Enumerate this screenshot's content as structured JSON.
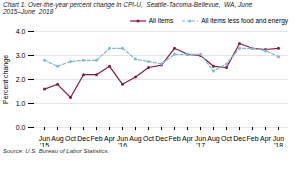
{
  "chart_data": {
    "type": "line",
    "title": "Chart 1. Over-the-year percent change in CPI-U,  Seattle-Tacoma-Bellevue,  WA, June\n2015–June  2018",
    "ylabel": "Percent change",
    "caption": "Source: U.S. Bureau of Labor Statistics.",
    "categories": [
      "Jun\n'15",
      "Aug",
      "Oct",
      "Dec",
      "Feb",
      "Apr",
      "Jun\n'16",
      "Aug",
      "Oct",
      "Dec",
      "Feb",
      "Apr",
      "Jun\n'17",
      "Aug",
      "Oct",
      "Dec",
      "Feb",
      "Apr",
      "Jun\n'18"
    ],
    "series": [
      {
        "name": "All items",
        "color": "#8b1a3e",
        "marker": "o",
        "line_style": "solid",
        "values": [
          1.6,
          1.8,
          1.25,
          2.2,
          2.2,
          2.55,
          1.8,
          2.1,
          2.5,
          2.6,
          3.3,
          3.05,
          3.0,
          2.55,
          2.5,
          3.5,
          3.3,
          3.25,
          3.3
        ]
      },
      {
        "name": "All items less food and energy",
        "color": "#7fb8d8",
        "marker": "o",
        "line_style": "dashed",
        "values": [
          2.8,
          2.55,
          2.75,
          2.8,
          2.8,
          3.3,
          3.3,
          2.85,
          2.75,
          2.65,
          3.05,
          3.05,
          3.05,
          2.35,
          2.65,
          3.3,
          3.3,
          3.2,
          2.95
        ]
      }
    ],
    "ylim": [
      0.0,
      4.0
    ],
    "yticks": [
      {
        "value": 0,
        "label": "0.0"
      },
      {
        "value": 1,
        "label": "1.0"
      },
      {
        "value": 2,
        "label": "2.0"
      },
      {
        "value": 3,
        "label": "3.0"
      },
      {
        "value": 4,
        "label": "4.0"
      }
    ],
    "grid": true,
    "legend": "upper right"
  }
}
